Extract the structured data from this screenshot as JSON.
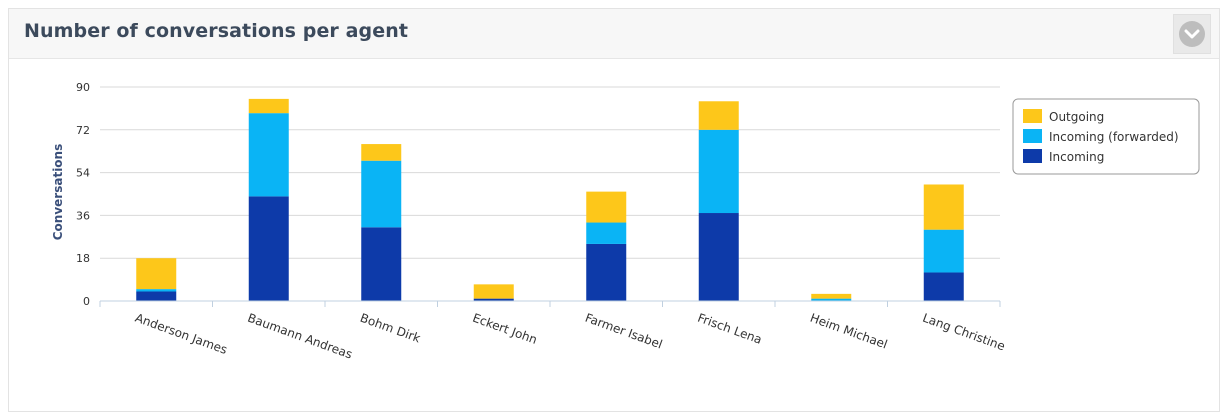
{
  "panel": {
    "title": "Number of conversations per agent",
    "toggle_icon": "chevron-down-icon"
  },
  "chart_data": {
    "type": "bar",
    "stacked": true,
    "title": "",
    "xlabel": "",
    "ylabel": "Conversations",
    "ylim": [
      0,
      90
    ],
    "yticks": [
      "0",
      "18",
      "36",
      "54",
      "72",
      "90"
    ],
    "grid": true,
    "legend_position": "right",
    "categories": [
      "Anderson James",
      "Baumann Andreas",
      "Bohm Dirk",
      "Eckert John",
      "Farmer Isabel",
      "Frisch Lena",
      "Heim Michael",
      "Lang Christine"
    ],
    "series": [
      {
        "name": "Incoming",
        "color": "#0d3aa9",
        "values": [
          4,
          44,
          31,
          1,
          24,
          37,
          0,
          12
        ]
      },
      {
        "name": "Incoming (forwarded)",
        "color": "#0ab4f5",
        "values": [
          1,
          35,
          28,
          0,
          9,
          35,
          1,
          18
        ]
      },
      {
        "name": "Outgoing",
        "color": "#fdc71a",
        "values": [
          13,
          6,
          7,
          6,
          13,
          12,
          2,
          19
        ]
      }
    ],
    "legend_order": [
      "Outgoing",
      "Incoming (forwarded)",
      "Incoming"
    ]
  }
}
